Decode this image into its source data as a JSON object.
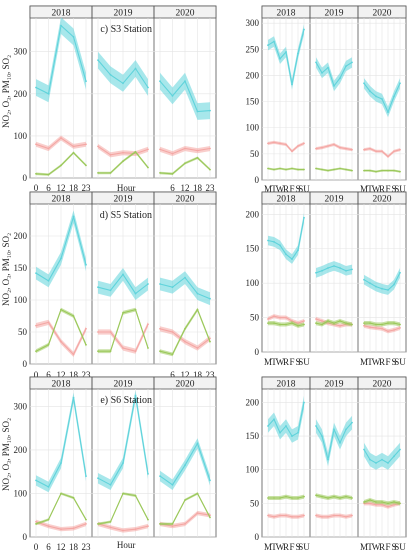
{
  "figure": {
    "ylabel_left": "NO₂, O₃, PM₁₀, SO₂",
    "year_labels": [
      "2018",
      "2019",
      "2020"
    ]
  },
  "colors": {
    "pm10": "#5fd3db",
    "no2": "#f4a6a3",
    "o3": "#9bc85a",
    "so2": "#c9b1c4"
  },
  "chart_data": [
    {
      "id": "s3-hourly",
      "type": "line",
      "title": "c) S3 Station",
      "xlabel": "Hour",
      "ylabel": "NO₂, O₃, PM₁₀, SO₂",
      "ylim": [
        0,
        380
      ],
      "yticks": [
        0,
        100,
        200,
        300
      ],
      "panels": [
        "2018",
        "2019",
        "2020"
      ],
      "x": [
        0,
        6,
        12,
        18,
        23
      ],
      "xtick_labels": [
        "0",
        "6",
        "12",
        "18",
        "23",
        "6",
        "12",
        "18",
        "23"
      ],
      "series": [
        {
          "name": "PM10",
          "color_key": "pm10",
          "band": 20,
          "values": [
            [
              215,
              200,
              362,
              335,
              230
            ],
            [
              280,
              245,
              225,
              260,
              215
            ],
            [
              230,
              195,
              230,
              158,
              160
            ]
          ]
        },
        {
          "name": "NO2",
          "color_key": "no2",
          "band": 6,
          "values": [
            [
              80,
              70,
              95,
              75,
              80
            ],
            [
              75,
              55,
              60,
              58,
              68
            ],
            [
              68,
              58,
              70,
              65,
              70
            ]
          ]
        },
        {
          "name": "O3",
          "color_key": "o3",
          "band": 3,
          "values": [
            [
              10,
              8,
              30,
              60,
              30
            ],
            [
              12,
              12,
              40,
              62,
              25
            ],
            [
              12,
              10,
              35,
              48,
              20
            ]
          ]
        }
      ]
    },
    {
      "id": "s5-hourly",
      "type": "line",
      "title": "d) S5 Station",
      "xlabel": "",
      "ylabel": "NO₂, O₃, PM₁₀, SO₂",
      "ylim": [
        0,
        250
      ],
      "yticks": [
        0,
        50,
        100,
        150,
        200
      ],
      "panels": [
        "2018",
        "2019",
        "2020"
      ],
      "x": [
        0,
        6,
        12,
        18,
        23
      ],
      "xtick_labels": [
        "0",
        "6",
        "12",
        "18",
        "23",
        "6",
        "12",
        "18",
        "23"
      ],
      "series": [
        {
          "name": "PM10",
          "color_key": "pm10",
          "band": 10,
          "values": [
            [
              142,
              130,
              165,
              230,
              155
            ],
            [
              120,
              115,
              140,
              110,
              125
            ],
            [
              125,
              120,
              135,
              110,
              102
            ]
          ]
        },
        {
          "name": "NO2",
          "color_key": "no2",
          "band": 4,
          "values": [
            [
              60,
              65,
              35,
              15,
              55
            ],
            [
              50,
              50,
              25,
              20,
              62
            ],
            [
              55,
              50,
              35,
              25,
              40
            ]
          ]
        },
        {
          "name": "O3",
          "color_key": "o3",
          "band": 3,
          "values": [
            [
              20,
              30,
              85,
              75,
              30
            ],
            [
              20,
              20,
              80,
              85,
              25
            ],
            [
              20,
              15,
              55,
              85,
              35
            ]
          ]
        }
      ]
    },
    {
      "id": "s6-hourly",
      "type": "line",
      "title": "e) S6 Station",
      "xlabel": "Hour",
      "ylabel": "NO₂, O₃, PM₁₀, SO₂",
      "ylim": [
        0,
        340
      ],
      "yticks": [
        0,
        100,
        200,
        300
      ],
      "panels": [
        "2018",
        "2019",
        "2020"
      ],
      "x": [
        0,
        6,
        12,
        18,
        23
      ],
      "xtick_labels": [
        "0",
        "6",
        "12",
        "18",
        "23"
      ],
      "series": [
        {
          "name": "PM10",
          "color_key": "pm10",
          "band": 12,
          "values": [
            [
              130,
              115,
              170,
              320,
              140
            ],
            [
              135,
              120,
              170,
              325,
              145
            ],
            [
              140,
              120,
              165,
              215,
              130
            ]
          ]
        },
        {
          "name": "NO2",
          "color_key": "no2",
          "band": 5,
          "values": [
            [
              35,
              25,
              18,
              20,
              30
            ],
            [
              30,
              22,
              15,
              18,
              25
            ],
            [
              30,
              25,
              30,
              55,
              50
            ]
          ]
        },
        {
          "name": "O3",
          "color_key": "o3",
          "band": 3,
          "values": [
            [
              30,
              40,
              100,
              90,
              40
            ],
            [
              30,
              35,
              100,
              95,
              40
            ],
            [
              30,
              30,
              85,
              100,
              45
            ]
          ]
        }
      ]
    },
    {
      "id": "s3-weekly",
      "type": "line",
      "ylim": [
        0,
        310
      ],
      "yticks": [
        0,
        50,
        100,
        150,
        200,
        250,
        300
      ],
      "panels": [
        "2018",
        "2019",
        "2020"
      ],
      "categories": [
        "M",
        "T",
        "W",
        "R",
        "F",
        "S",
        "SU"
      ],
      "xtick_panels": [
        0,
        2
      ],
      "series": [
        {
          "name": "PM10",
          "color_key": "pm10",
          "band": 10,
          "values": [
            [
              258,
              265,
              232,
              245,
              183,
              242,
              288
            ],
            [
              225,
              205,
              215,
              180,
              195,
              218,
              225
            ],
            [
              185,
              170,
              160,
              155,
              130,
              160,
              185
            ]
          ]
        },
        {
          "name": "NO2",
          "color_key": "no2",
          "band": 3,
          "values": [
            [
              70,
              72,
              70,
              68,
              55,
              65,
              70
            ],
            [
              60,
              62,
              65,
              68,
              62,
              60,
              58
            ],
            [
              58,
              60,
              55,
              55,
              45,
              55,
              58
            ]
          ]
        },
        {
          "name": "O3",
          "color_key": "o3",
          "band": 2,
          "values": [
            [
              22,
              20,
              22,
              20,
              22,
              20,
              20
            ],
            [
              22,
              20,
              18,
              20,
              22,
              20,
              18
            ],
            [
              18,
              18,
              16,
              18,
              18,
              18,
              16
            ]
          ]
        }
      ]
    },
    {
      "id": "s5-weekly",
      "type": "line",
      "ylim": [
        0,
        215
      ],
      "yticks": [
        0,
        50,
        100,
        150,
        200
      ],
      "panels": [
        "2018",
        "2019",
        "2020"
      ],
      "categories": [
        "M",
        "T",
        "W",
        "R",
        "F",
        "S",
        "SU"
      ],
      "xtick_panels": [
        0,
        2
      ],
      "series": [
        {
          "name": "PM10",
          "color_key": "pm10",
          "band": 7,
          "values": [
            [
              162,
              160,
              155,
              142,
              135,
              148,
              195
            ],
            [
              115,
              118,
              122,
              125,
              122,
              118,
              120
            ],
            [
              105,
              100,
              95,
              92,
              90,
              98,
              115
            ]
          ]
        },
        {
          "name": "NO2",
          "color_key": "no2",
          "band": 3,
          "values": [
            [
              48,
              52,
              50,
              50,
              45,
              42,
              45
            ],
            [
              48,
              45,
              42,
              40,
              38,
              40,
              40
            ],
            [
              38,
              36,
              35,
              34,
              30,
              32,
              35
            ]
          ]
        },
        {
          "name": "O3",
          "color_key": "o3",
          "band": 3,
          "values": [
            [
              42,
              42,
              40,
              40,
              42,
              38,
              40
            ],
            [
              42,
              40,
              45,
              42,
              45,
              42,
              40
            ],
            [
              42,
              42,
              40,
              40,
              42,
              42,
              40
            ]
          ]
        }
      ]
    },
    {
      "id": "s6-weekly",
      "type": "line",
      "ylim": [
        0,
        220
      ],
      "yticks": [
        0,
        50,
        100,
        150,
        200
      ],
      "panels": [
        "2018",
        "2019",
        "2020"
      ],
      "categories": [
        "M",
        "T",
        "W",
        "R",
        "F",
        "S",
        "SU"
      ],
      "xtick_panels": [
        0,
        2
      ],
      "series": [
        {
          "name": "PM10",
          "color_key": "pm10",
          "band": 10,
          "values": [
            [
              165,
              175,
              155,
              165,
              150,
              155,
              200
            ],
            [
              165,
              150,
              115,
              160,
              140,
              160,
              170
            ],
            [
              130,
              115,
              110,
              115,
              110,
              120,
              130
            ]
          ]
        },
        {
          "name": "NO2",
          "color_key": "no2",
          "band": 3,
          "values": [
            [
              32,
              30,
              32,
              32,
              30,
              30,
              32
            ],
            [
              32,
              30,
              30,
              32,
              32,
              30,
              32
            ],
            [
              50,
              50,
              48,
              48,
              45,
              48,
              50
            ]
          ]
        },
        {
          "name": "O3",
          "color_key": "o3",
          "band": 3,
          "values": [
            [
              58,
              58,
              58,
              60,
              58,
              58,
              60
            ],
            [
              62,
              60,
              58,
              60,
              58,
              60,
              58
            ],
            [
              52,
              55,
              52,
              52,
              50,
              52,
              50
            ]
          ]
        }
      ]
    }
  ]
}
